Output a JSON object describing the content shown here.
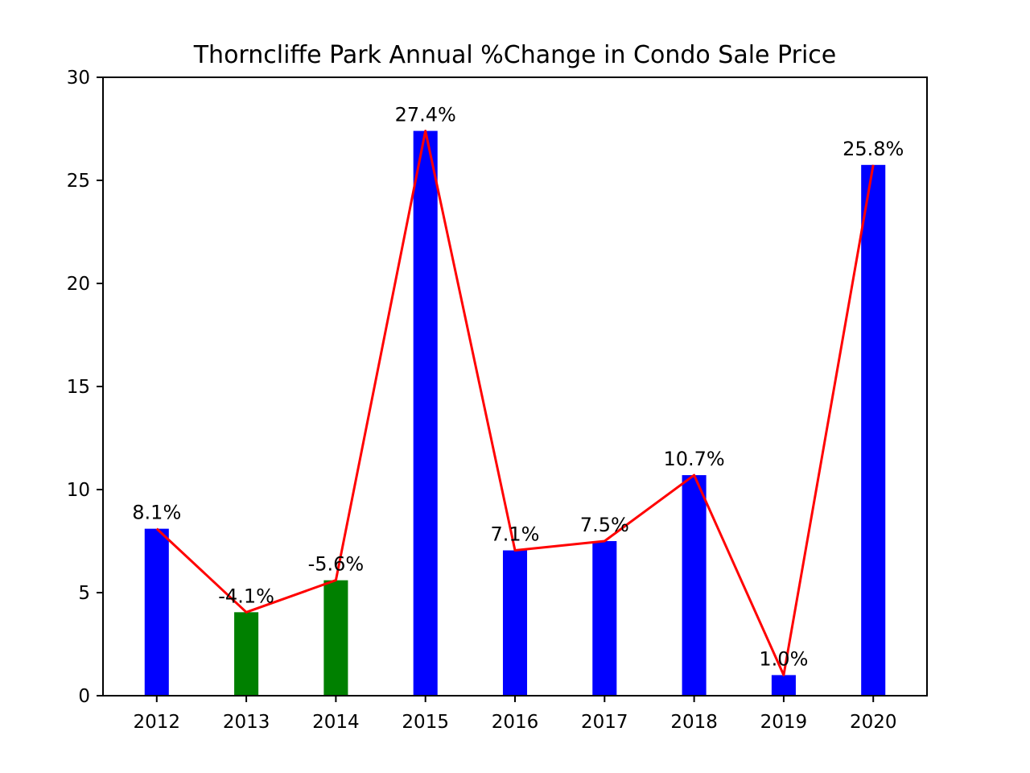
{
  "chart_data": {
    "type": "bar",
    "title": "Thorncliffe Park Annual %Change in Condo Sale Price",
    "xlabel": "",
    "ylabel": "",
    "ylim": [
      0,
      30
    ],
    "yticks": [
      "0",
      "5",
      "10",
      "15",
      "20",
      "25",
      "30"
    ],
    "categories": [
      "2012",
      "2013",
      "2014",
      "2015",
      "2016",
      "2017",
      "2018",
      "2019",
      "2020"
    ],
    "values": [
      8.1,
      4.05,
      5.6,
      27.4,
      7.05,
      7.5,
      10.7,
      1.0,
      25.75
    ],
    "data_labels": [
      "8.1%",
      "-4.1%",
      "-5.6%",
      "27.4%",
      "7.1%",
      "7.5%",
      "10.7%",
      "1.0%",
      "25.8%"
    ],
    "bar_colors": [
      "#0000ff",
      "#008000",
      "#008000",
      "#0000ff",
      "#0000ff",
      "#0000ff",
      "#0000ff",
      "#0000ff",
      "#0000ff"
    ],
    "line": {
      "color": "#ff0000",
      "values": [
        8.1,
        4.05,
        5.6,
        27.4,
        7.05,
        7.5,
        10.7,
        1.0,
        25.75
      ]
    },
    "grid": false,
    "legend": "none"
  }
}
